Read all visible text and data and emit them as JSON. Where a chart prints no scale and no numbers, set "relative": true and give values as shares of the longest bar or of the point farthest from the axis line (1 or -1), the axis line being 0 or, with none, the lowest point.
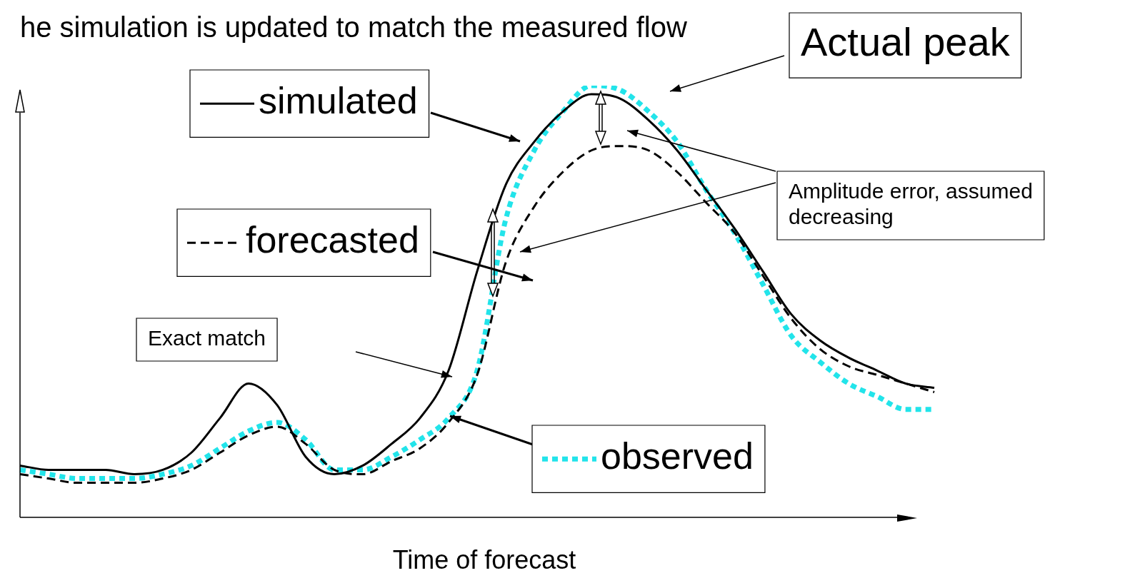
{
  "chart_data": {
    "type": "line",
    "title": "he simulation is updated to match the measured flow",
    "xlabel": "Time of forecast",
    "relative": true,
    "marker": "none",
    "legend": "top left",
    "categories": [
      null,
      null,
      null,
      null,
      null,
      null,
      null,
      null,
      null,
      null,
      null,
      null,
      null,
      null,
      null,
      null,
      null,
      null,
      null,
      null,
      null,
      null,
      null,
      null,
      null,
      null,
      null,
      null,
      null,
      null,
      null,
      null,
      null
    ],
    "series": [
      {
        "name": "simulated",
        "color": "#000000",
        "line_style": "solid",
        "values": [
          0.12,
          0.11,
          0.11,
          0.11,
          0.1,
          0.11,
          0.15,
          0.23,
          0.31,
          0.26,
          0.14,
          0.1,
          0.12,
          0.17,
          0.23,
          0.34,
          0.57,
          0.77,
          0.87,
          0.94,
          0.98,
          0.97,
          0.92,
          0.85,
          0.76,
          0.67,
          0.57,
          0.47,
          0.41,
          0.37,
          0.34,
          0.31,
          0.3
        ]
      },
      {
        "name": "forecasted",
        "color": "#000000",
        "line_style": "dashed",
        "values": [
          0.1,
          0.09,
          0.08,
          0.08,
          0.08,
          0.09,
          0.11,
          0.15,
          0.19,
          0.21,
          0.17,
          0.11,
          0.1,
          0.13,
          0.16,
          0.22,
          0.33,
          0.59,
          0.72,
          0.8,
          0.85,
          0.86,
          0.85,
          0.8,
          0.73,
          0.66,
          0.56,
          0.46,
          0.39,
          0.35,
          0.33,
          0.31,
          0.29
        ]
      },
      {
        "name": "observed",
        "color": "#22e4ea",
        "line_style": "dotted",
        "values": [
          0.11,
          0.1,
          0.09,
          0.09,
          0.09,
          0.1,
          0.12,
          0.16,
          0.2,
          0.22,
          0.18,
          0.11,
          0.11,
          0.14,
          0.18,
          0.23,
          0.34,
          0.69,
          0.85,
          0.94,
          1.0,
          0.99,
          0.94,
          0.87,
          0.76,
          0.66,
          0.54,
          0.42,
          0.36,
          0.31,
          0.28,
          0.25,
          0.25
        ]
      }
    ],
    "annotations": [
      "Actual peak",
      "Amplitude error, assumed decreasing",
      "Exact match"
    ]
  }
}
